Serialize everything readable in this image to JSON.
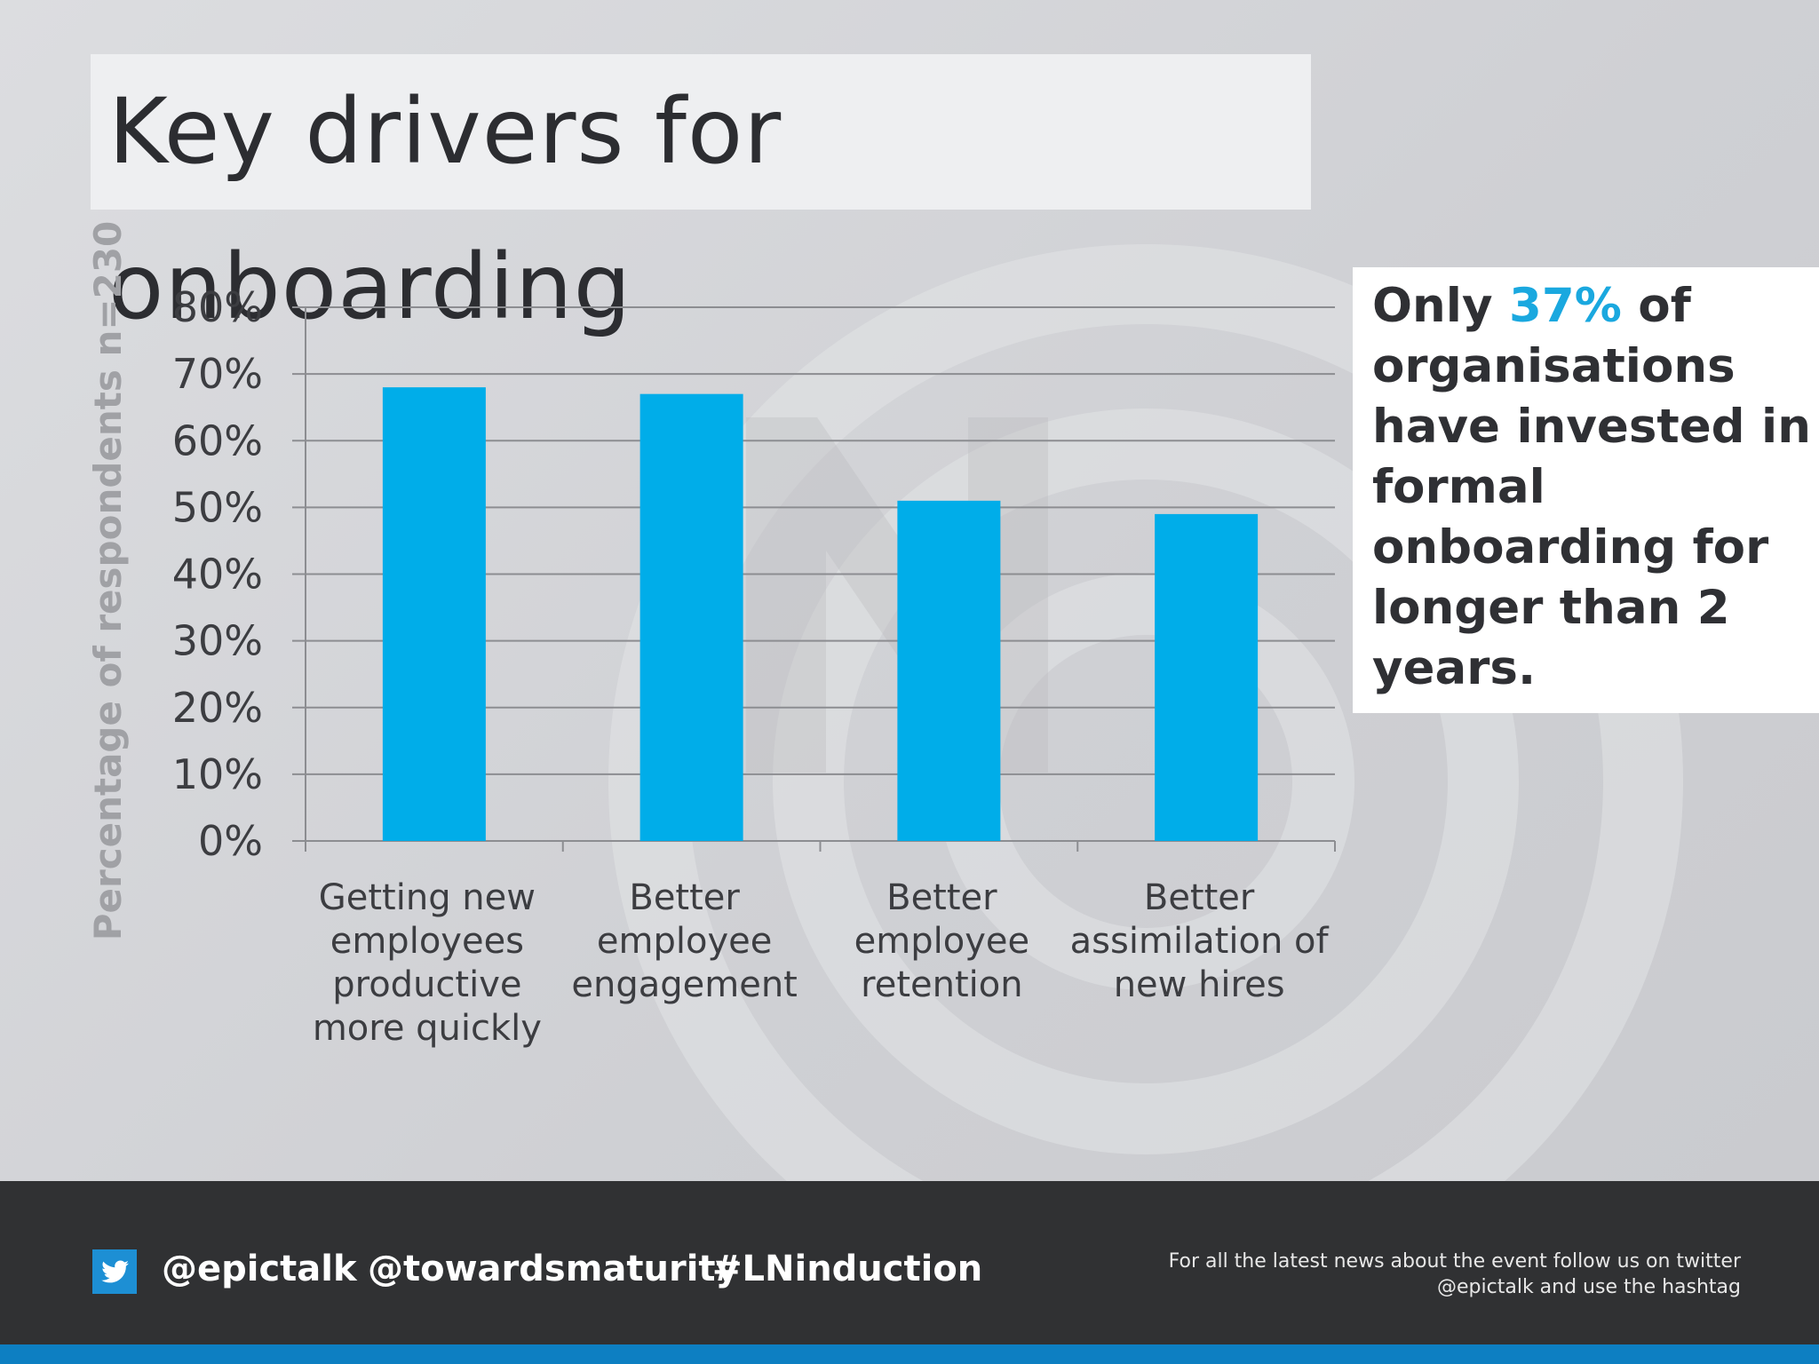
{
  "slide": {
    "title": "Key drivers for onboarding"
  },
  "colors": {
    "bar": "#00ade9",
    "highlight": "#1aa8df",
    "footer_bg": "#303133",
    "footer_strip": "#0d7fc2"
  },
  "chart_data": {
    "type": "bar",
    "categories": [
      [
        "Getting new",
        "employees",
        "productive",
        "more quickly"
      ],
      [
        "Better",
        "employee",
        "engagement"
      ],
      [
        "Better",
        "employee",
        "retention"
      ],
      [
        "Better",
        "assimilation of",
        "new hires"
      ]
    ],
    "values": [
      68,
      67,
      51,
      49
    ],
    "ylabel": "Percentage of respondents n=230",
    "ylim": [
      0,
      80
    ],
    "yticks": [
      "0%",
      "10%",
      "20%",
      "30%",
      "40%",
      "50%",
      "60%",
      "70%",
      "80%"
    ],
    "grid": true,
    "legend": "none"
  },
  "callout": {
    "before": "Only ",
    "highlight": "37%",
    "after": " of organisations have invested in formal onboarding for longer than 2 years."
  },
  "footer": {
    "icon": "twitter-bird-icon",
    "handles": [
      "@epictalk",
      "@towardsmaturity",
      "#LNinduction"
    ],
    "note_lines": [
      "For all the latest news about the event follow us on twitter",
      "@epictalk and use the hashtag"
    ]
  }
}
